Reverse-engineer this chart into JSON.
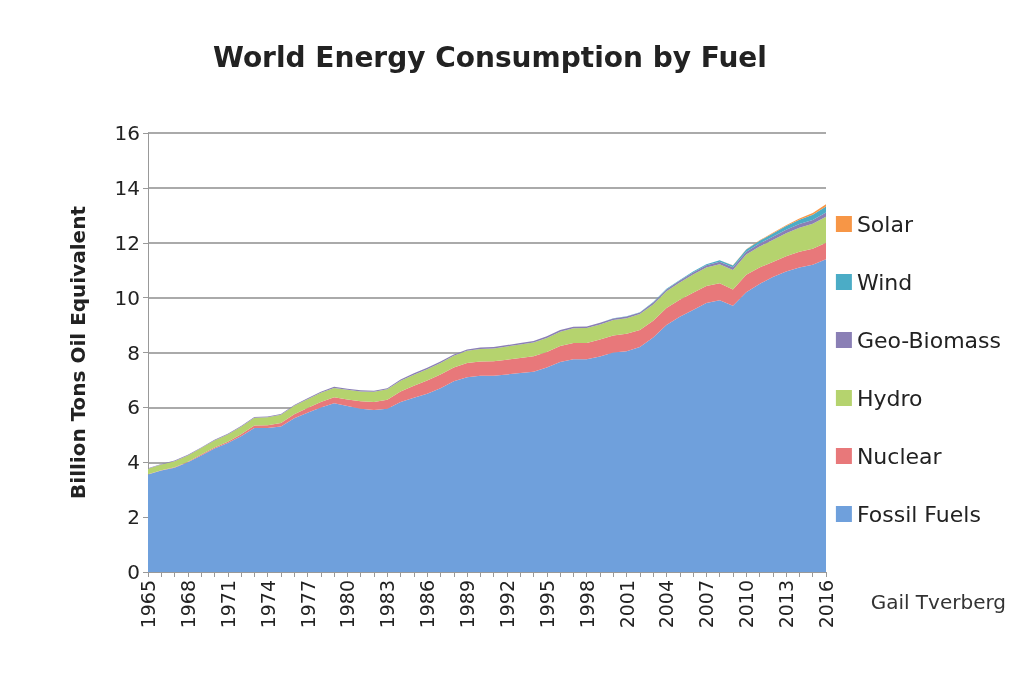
{
  "chart_data": {
    "type": "area",
    "title": "World Energy Consumption by Fuel",
    "ylabel": "Billion Tons Oil Equivalent",
    "stacked": true,
    "categories": [
      "1965",
      null,
      null,
      "1968",
      null,
      null,
      "1971",
      null,
      null,
      "1974",
      null,
      null,
      "1977",
      null,
      null,
      "1980",
      null,
      null,
      "1983",
      null,
      null,
      "1986",
      null,
      null,
      "1989",
      null,
      null,
      "1992",
      null,
      null,
      "1995",
      null,
      null,
      "1998",
      null,
      null,
      "2001",
      null,
      null,
      "2004",
      null,
      null,
      "2007",
      null,
      null,
      "2010",
      null,
      null,
      "2013",
      null,
      null,
      "2016"
    ],
    "series": [
      {
        "name": "Fossil Fuels",
        "color": "#6fa0dc",
        "values": [
          3.55,
          3.7,
          3.8,
          4.0,
          4.25,
          4.5,
          4.7,
          4.95,
          5.25,
          5.25,
          5.3,
          5.6,
          5.8,
          6.0,
          6.15,
          6.05,
          5.95,
          5.9,
          5.95,
          6.2,
          6.35,
          6.5,
          6.7,
          6.95,
          7.1,
          7.15,
          7.15,
          7.2,
          7.25,
          7.3,
          7.45,
          7.65,
          7.75,
          7.75,
          7.85,
          8.0,
          8.05,
          8.2,
          8.55,
          9.0,
          9.3,
          9.55,
          9.8,
          9.9,
          9.7,
          10.2,
          10.5,
          10.75,
          10.95,
          11.1,
          11.2,
          11.4
        ]
      },
      {
        "name": "Nuclear",
        "color": "#e8787a",
        "values": [
          0.01,
          0.01,
          0.02,
          0.02,
          0.03,
          0.04,
          0.05,
          0.07,
          0.09,
          0.1,
          0.13,
          0.15,
          0.18,
          0.2,
          0.22,
          0.24,
          0.27,
          0.3,
          0.33,
          0.38,
          0.44,
          0.48,
          0.5,
          0.5,
          0.52,
          0.52,
          0.53,
          0.54,
          0.55,
          0.56,
          0.57,
          0.59,
          0.6,
          0.6,
          0.62,
          0.62,
          0.63,
          0.62,
          0.61,
          0.62,
          0.62,
          0.63,
          0.62,
          0.62,
          0.6,
          0.63,
          0.6,
          0.55,
          0.56,
          0.57,
          0.58,
          0.6
        ]
      },
      {
        "name": "Hydro",
        "color": "#b5d36e",
        "values": [
          0.2,
          0.21,
          0.22,
          0.23,
          0.24,
          0.25,
          0.26,
          0.27,
          0.28,
          0.29,
          0.3,
          0.31,
          0.32,
          0.33,
          0.34,
          0.35,
          0.36,
          0.37,
          0.38,
          0.39,
          0.4,
          0.41,
          0.42,
          0.43,
          0.44,
          0.46,
          0.47,
          0.48,
          0.49,
          0.5,
          0.51,
          0.52,
          0.53,
          0.54,
          0.55,
          0.56,
          0.57,
          0.58,
          0.59,
          0.61,
          0.63,
          0.66,
          0.68,
          0.7,
          0.71,
          0.74,
          0.76,
          0.8,
          0.84,
          0.88,
          0.91,
          0.95
        ]
      },
      {
        "name": "Geo-Biomass",
        "color": "#8a7fb5",
        "values": [
          0.02,
          0.02,
          0.02,
          0.02,
          0.02,
          0.03,
          0.03,
          0.03,
          0.03,
          0.03,
          0.03,
          0.03,
          0.03,
          0.04,
          0.04,
          0.04,
          0.04,
          0.04,
          0.04,
          0.05,
          0.05,
          0.05,
          0.05,
          0.05,
          0.05,
          0.05,
          0.05,
          0.05,
          0.06,
          0.06,
          0.06,
          0.06,
          0.06,
          0.06,
          0.06,
          0.06,
          0.06,
          0.06,
          0.07,
          0.07,
          0.07,
          0.08,
          0.08,
          0.09,
          0.1,
          0.1,
          0.11,
          0.12,
          0.12,
          0.13,
          0.14,
          0.15
        ]
      },
      {
        "name": "Wind",
        "color": "#4bacc6",
        "values": [
          0,
          0,
          0,
          0,
          0,
          0,
          0,
          0,
          0,
          0,
          0,
          0,
          0,
          0,
          0,
          0,
          0,
          0,
          0,
          0,
          0,
          0,
          0,
          0,
          0,
          0,
          0,
          0,
          0,
          0,
          0,
          0,
          0,
          0,
          0,
          0.01,
          0.01,
          0.01,
          0.02,
          0.02,
          0.02,
          0.03,
          0.04,
          0.05,
          0.06,
          0.08,
          0.1,
          0.12,
          0.14,
          0.16,
          0.19,
          0.22
        ]
      },
      {
        "name": "Solar",
        "color": "#f79646",
        "values": [
          0,
          0,
          0,
          0,
          0,
          0,
          0,
          0,
          0,
          0,
          0,
          0,
          0,
          0,
          0,
          0,
          0,
          0,
          0,
          0,
          0,
          0,
          0,
          0,
          0,
          0,
          0,
          0,
          0,
          0,
          0,
          0,
          0,
          0,
          0,
          0,
          0,
          0,
          0,
          0,
          0,
          0,
          0,
          0,
          0.01,
          0.01,
          0.02,
          0.02,
          0.03,
          0.04,
          0.06,
          0.08
        ]
      }
    ],
    "ylim": [
      0,
      16
    ],
    "yticks": [
      0,
      2,
      4,
      6,
      8,
      10,
      12,
      14,
      16
    ],
    "grid": "y",
    "legend": "right",
    "annotations": [
      "Gail Tverberg"
    ]
  }
}
